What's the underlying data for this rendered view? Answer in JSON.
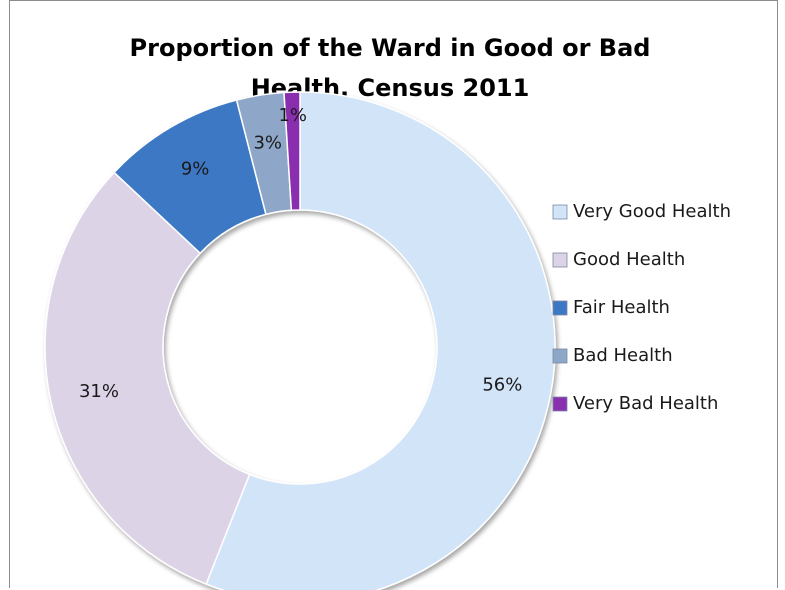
{
  "chart_data": {
    "type": "pie",
    "variant": "doughnut",
    "title": [
      "Proportion of the Ward  in Good or Bad",
      "Health, Census 2011"
    ],
    "categories": [
      "Very Good Health",
      "Good Health",
      "Fair Health",
      "Bad Health",
      "Very Bad Health"
    ],
    "values": [
      56,
      31,
      9,
      3,
      1
    ],
    "labels": [
      "56%",
      "31%",
      "9%",
      "3%",
      "1%"
    ],
    "colors": [
      "#d2e4f8",
      "#ddd3e7",
      "#3d78c5",
      "#8ea7c8",
      "#8a2fb0"
    ],
    "legend_position": "right"
  }
}
